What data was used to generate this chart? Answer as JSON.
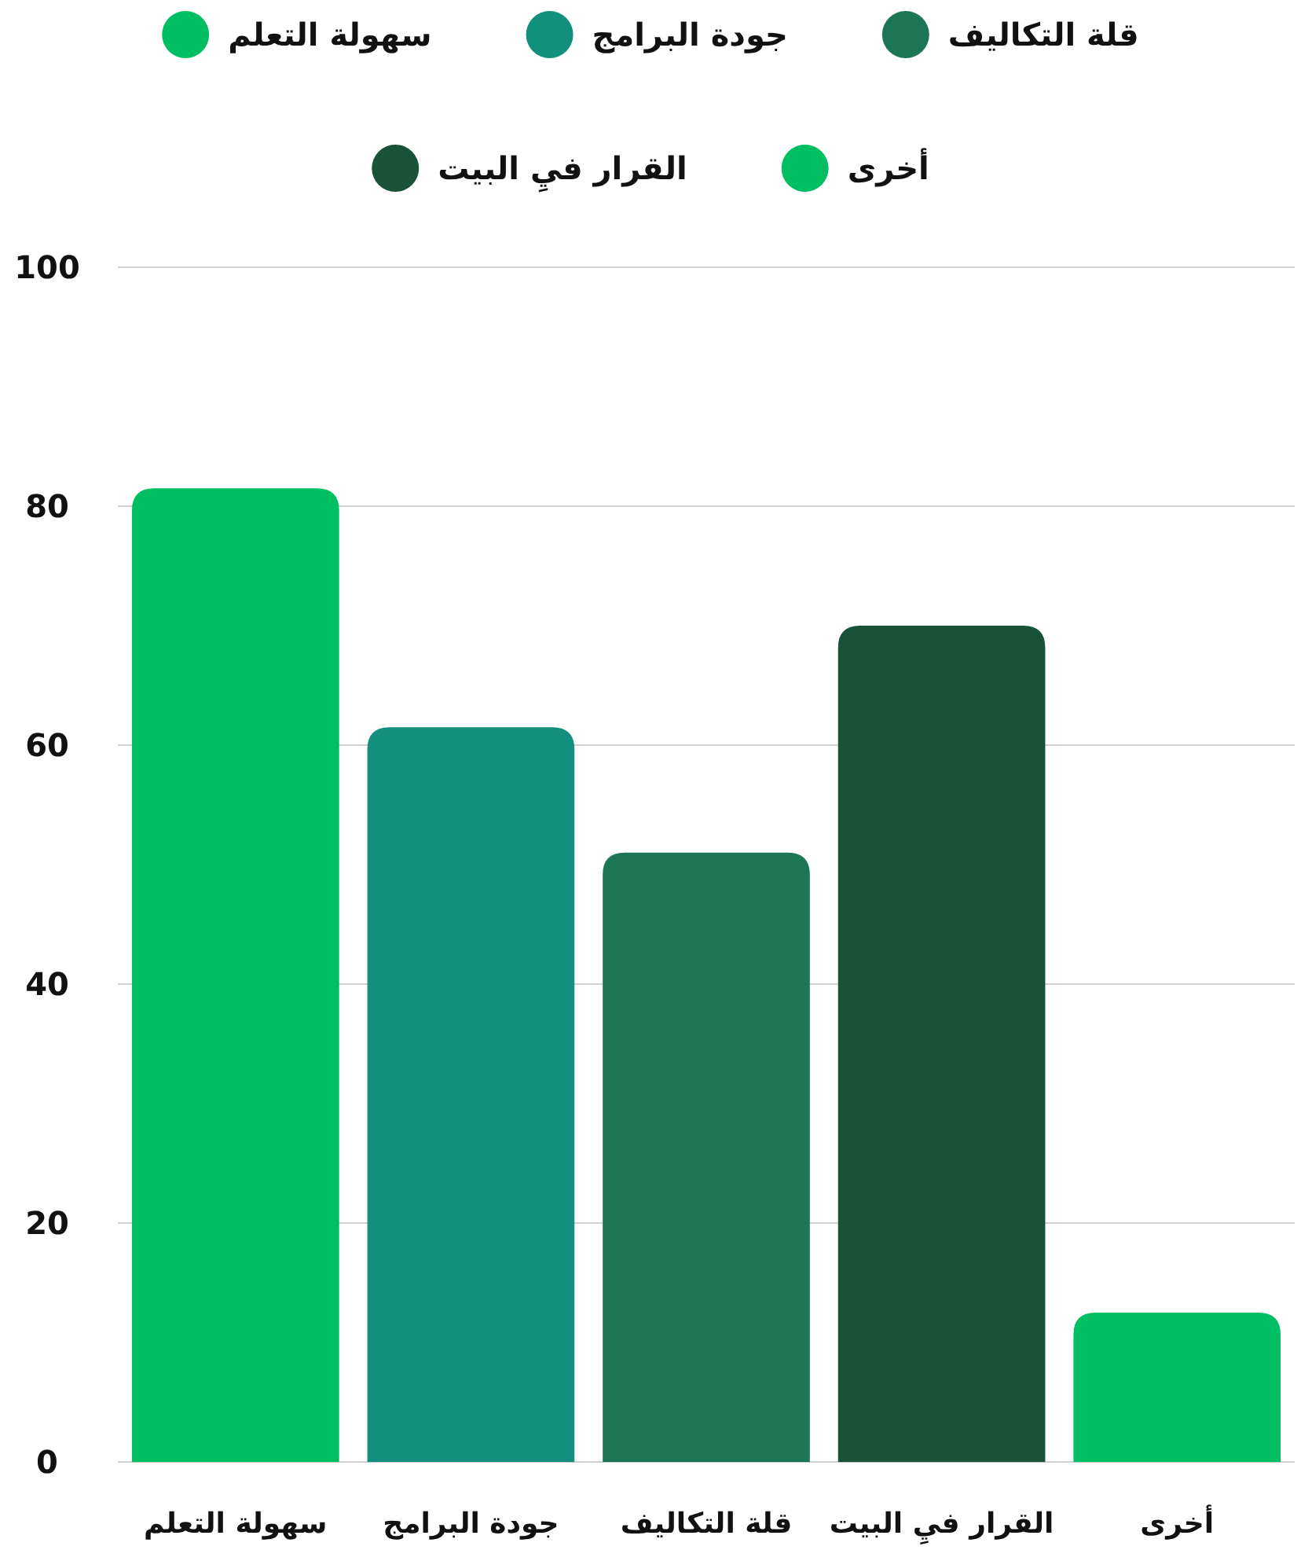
{
  "chart_data": {
    "type": "bar",
    "stacked": true,
    "categories": [
      "سهولة التعلم",
      "جودة البرامج",
      "قلة التكاليف",
      "القرار فيِ البيت",
      "أخرى"
    ],
    "series": [
      {
        "name": "سهولة التعلم",
        "color": "#00bf63",
        "values": [
          81.5,
          null,
          null,
          null,
          null
        ]
      },
      {
        "name": "جودة البرامج",
        "color": "#138f7d",
        "values": [
          null,
          61.5,
          null,
          null,
          null
        ]
      },
      {
        "name": "قلة التكاليف",
        "color": "#1c7655",
        "values": [
          null,
          null,
          51,
          null,
          null
        ]
      },
      {
        "name": "القرار فيِ البيت",
        "color": "#185238",
        "values": [
          null,
          null,
          null,
          70,
          null
        ]
      },
      {
        "name": "أخرى",
        "color": "#00bf63",
        "values": [
          null,
          null,
          null,
          null,
          12.5
        ]
      }
    ],
    "ylim": [
      0,
      100
    ],
    "yticks": [
      0,
      20,
      40,
      60,
      80,
      100
    ],
    "grid": "y",
    "legend": "top"
  }
}
